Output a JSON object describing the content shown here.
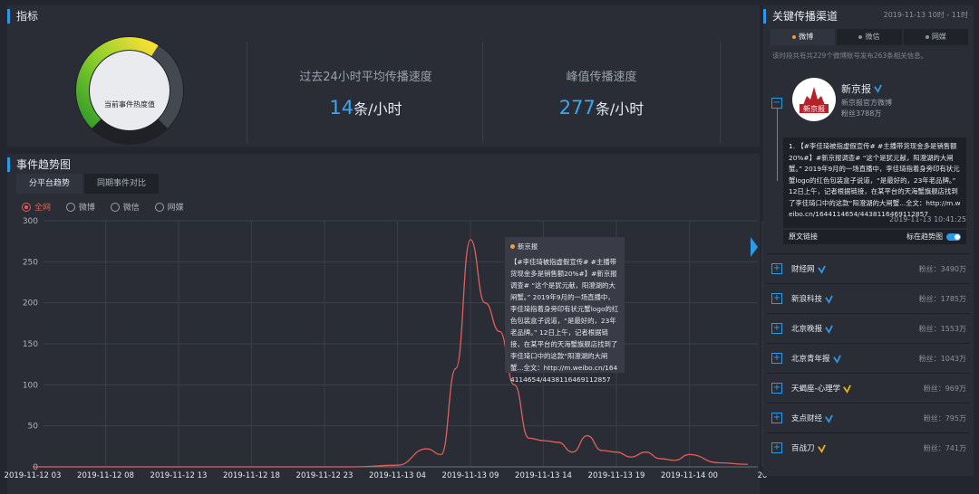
{
  "indicators": {
    "title": "指标",
    "gauge_label": "当前事件热度值",
    "gauge_level": 0.62,
    "stat1": {
      "label": "过去24小时平均传播速度",
      "value": "14",
      "unit": "条/小时"
    },
    "stat2": {
      "label": "峰值传播速度",
      "value": "277",
      "unit": "条/小时"
    }
  },
  "trend": {
    "title": "事件趋势图",
    "tabs": [
      "分平台趋势",
      "同期事件对比"
    ],
    "radios": [
      "全网",
      "微博",
      "微信",
      "网媒"
    ],
    "selected_radio": "全网",
    "tooltip": {
      "source": "新京报",
      "text": "【#李佳琦被指虚假宣传# #主播带货现金多是销售额20%#】#新京报调查# “这个是犹元献，阳澄湖的大闸蟹。” 2019年9月的一场直播中，李佳琦指着身旁印有状元蟹logo的红色包装盒子说道，“是最好的，23年老品牌。” 12日上午，记者根据链接，在某平台的天海蟹旗舰店找到了李佳琦口中的这款“阳澄湖的大闸蟹...全文：http://m.weibo.cn/1644114654/4438116469112857"
    }
  },
  "chart_data": {
    "type": "line",
    "x": [
      "2019-11-12 03",
      "2019-11-12 05",
      "2019-11-12 08",
      "2019-11-12 10",
      "2019-11-12 13",
      "2019-11-12 15",
      "2019-11-12 18",
      "2019-11-12 20",
      "2019-11-12 23",
      "2019-11-13 01",
      "2019-11-13 04",
      "2019-11-13 06",
      "2019-11-13 07",
      "2019-11-13 08",
      "2019-11-13 09",
      "2019-11-13 10",
      "2019-11-13 11",
      "2019-11-13 12",
      "2019-11-13 13",
      "2019-11-13 14",
      "2019-11-13 15",
      "2019-11-13 16",
      "2019-11-13 17",
      "2019-11-13 18",
      "2019-11-13 19",
      "2019-11-13 20",
      "2019-11-13 21",
      "2019-11-13 22",
      "2019-11-13 23",
      "2019-11-14 00",
      "2019-11-14 02",
      "2019-11-14 04"
    ],
    "series": [
      {
        "values": [
          0,
          0,
          0,
          0,
          0,
          0,
          0,
          0,
          0,
          0,
          2,
          22,
          15,
          120,
          277,
          200,
          165,
          100,
          35,
          32,
          30,
          18,
          38,
          20,
          18,
          12,
          18,
          10,
          8,
          15,
          5,
          3
        ]
      }
    ],
    "ylim": [
      0,
      300
    ],
    "yticks": [
      0,
      50,
      100,
      150,
      200,
      250,
      300
    ],
    "xtick_labels": [
      "2019-11-12 03",
      "2019-11-12 08",
      "2019-11-12 13",
      "2019-11-12 18",
      "2019-11-12 23",
      "2019-11-13 04",
      "2019-11-13 09",
      "2019-11-13 14",
      "2019-11-13 19",
      "2019-11-14 00",
      "20"
    ],
    "grid": true,
    "line_color": "#e0605a"
  },
  "channels": {
    "title": "关键传播渠道",
    "date_range": "2019-11-13 10时 - 11时",
    "tabs": [
      "微博",
      "微信",
      "网媒"
    ],
    "note": "该时段共有共229个微博账号发布263条相关信息。",
    "featured": {
      "name": "新京报",
      "logo_text": "新京报",
      "desc": "新京报官方微博",
      "fans": "粉丝3788万",
      "post": "1. 【#李佳琦被指虚假宣传# #主播带货现金多是销售额20%#】#新京报调查# “这个是犹元献，阳澄湖的大闸蟹。” 2019年9月的一场直播中，李佳琦指着身旁印有状元蟹logo的红色包装盒子说道，“是最好的，23年老品牌。” 12日上午，记者根据链接，在某平台的天海蟹旗舰店找到了李佳琦口中的这款“阳澄湖的大闸蟹...全文：http://m.weibo.cn/1644114654/4438116469112857",
      "time": "2019-11-13 10:41:25",
      "link_label": "原文链接",
      "toggle_label": "标在趋势图"
    },
    "list": [
      {
        "name": "财经网",
        "badge": "blue",
        "fans": "粉丝：3490万"
      },
      {
        "name": "新浪科技",
        "badge": "blue",
        "fans": "粉丝：1785万"
      },
      {
        "name": "北京晚报",
        "badge": "blue",
        "fans": "粉丝：1553万"
      },
      {
        "name": "北京青年报",
        "badge": "blue",
        "fans": "粉丝：1043万"
      },
      {
        "name": "天蝎座-心理学",
        "badge": "gold",
        "fans": "粉丝：969万"
      },
      {
        "name": "支点财经",
        "badge": "blue",
        "fans": "粉丝：795万"
      },
      {
        "name": "百战刀",
        "badge": "gold",
        "fans": "粉丝：741万"
      }
    ],
    "colors": {
      "accent": "#2d9ae8",
      "badge_blue": "#2d9ae8",
      "badge_gold": "#f0b020"
    }
  }
}
